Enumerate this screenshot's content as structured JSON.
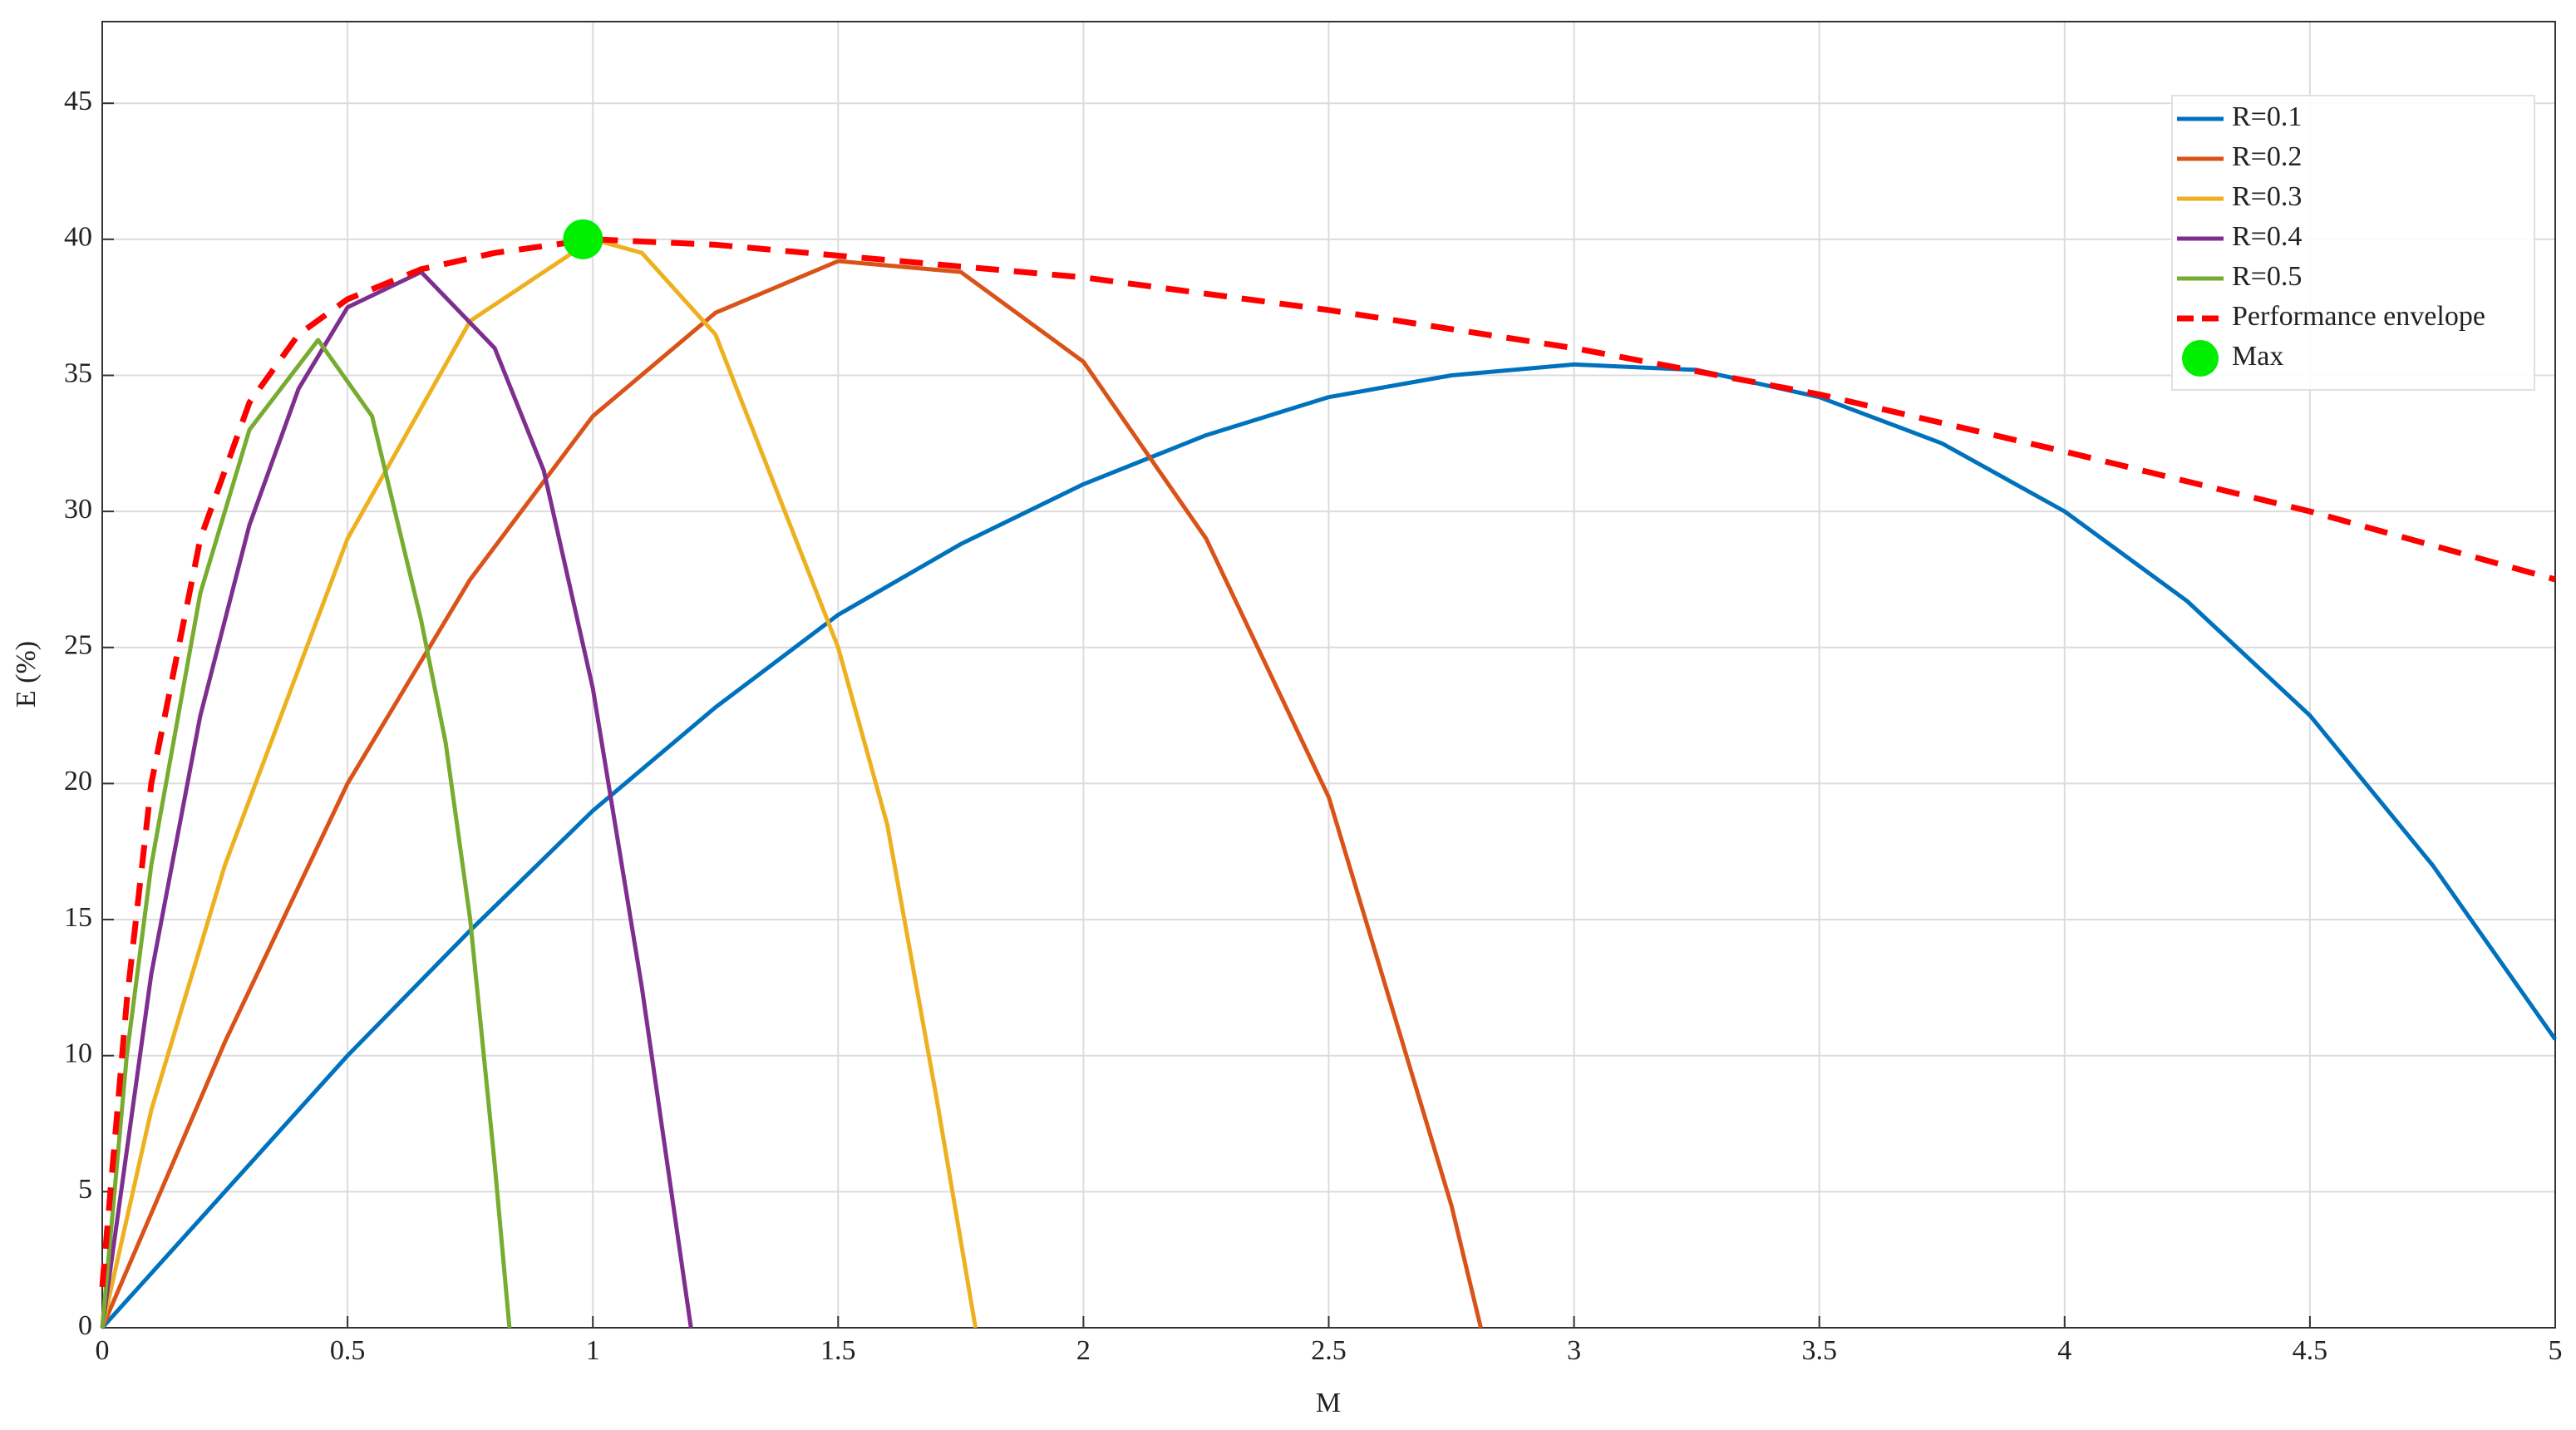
{
  "chart_data": {
    "type": "line",
    "x_label": "M",
    "y_label": "E (%)",
    "xlim": [
      0,
      5
    ],
    "ylim": [
      0,
      48
    ],
    "xticks": [
      0,
      0.5,
      1,
      1.5,
      2,
      2.5,
      3,
      3.5,
      4,
      4.5,
      5
    ],
    "yticks": [
      0,
      5,
      10,
      15,
      20,
      25,
      30,
      35,
      40,
      45
    ],
    "grid": true,
    "legend": "upper right",
    "series": [
      {
        "name": "R=0.1",
        "color": "#0072bd",
        "style": "solid",
        "x": [
          0,
          0.25,
          0.5,
          0.75,
          1,
          1.25,
          1.5,
          1.75,
          2,
          2.25,
          2.5,
          2.75,
          3,
          3.25,
          3.5,
          3.75,
          4,
          4.25,
          4.5,
          4.75,
          5
        ],
        "values": [
          0,
          5,
          10,
          14.6,
          19,
          22.8,
          26.2,
          28.8,
          31,
          32.8,
          34.2,
          35,
          35.4,
          35.2,
          34.2,
          32.5,
          30,
          26.7,
          22.5,
          17,
          10.6
        ]
      },
      {
        "name": "R=0.2",
        "color": "#d95319",
        "style": "solid",
        "x": [
          0,
          0.25,
          0.5,
          0.75,
          1,
          1.25,
          1.5,
          1.75,
          2,
          2.25,
          2.5,
          2.75,
          2.81
        ],
        "values": [
          0,
          10.5,
          20,
          27.5,
          33.5,
          37.3,
          39.2,
          38.8,
          35.5,
          29,
          19.5,
          4.5,
          0
        ]
      },
      {
        "name": "R=0.3",
        "color": "#edb120",
        "style": "solid",
        "x": [
          0,
          0.1,
          0.25,
          0.5,
          0.75,
          1,
          1.1,
          1.25,
          1.5,
          1.6,
          1.7,
          1.78
        ],
        "values": [
          0,
          8,
          17,
          29,
          37,
          40,
          39.5,
          36.5,
          25,
          18.5,
          8.5,
          0
        ]
      },
      {
        "name": "R=0.4",
        "color": "#7e2f8e",
        "style": "solid",
        "x": [
          0,
          0.1,
          0.2,
          0.3,
          0.4,
          0.5,
          0.65,
          0.8,
          0.9,
          1,
          1.1,
          1.2
        ],
        "values": [
          0,
          13,
          22.5,
          29.5,
          34.5,
          37.5,
          38.8,
          36,
          31.5,
          23.5,
          12.5,
          0
        ]
      },
      {
        "name": "R=0.5",
        "color": "#77ac30",
        "style": "solid",
        "x": [
          0,
          0.05,
          0.1,
          0.2,
          0.3,
          0.44,
          0.55,
          0.65,
          0.7,
          0.75,
          0.8,
          0.83
        ],
        "values": [
          0,
          10,
          17,
          27,
          33,
          36.3,
          33.5,
          26,
          21.5,
          15,
          6,
          0
        ]
      },
      {
        "name": "Performance envelope",
        "color": "#ff0000",
        "style": "dashed",
        "x": [
          0,
          0.05,
          0.1,
          0.2,
          0.3,
          0.4,
          0.5,
          0.65,
          0.8,
          1,
          1.25,
          1.5,
          2,
          2.5,
          3,
          3.5,
          4,
          4.5,
          5
        ],
        "values": [
          1.5,
          12,
          20,
          29,
          34,
          36.5,
          37.8,
          38.9,
          39.5,
          40,
          39.8,
          39.4,
          38.6,
          37.4,
          36,
          34.3,
          32.2,
          30,
          27.5
        ]
      },
      {
        "name": "Max",
        "color": "#00ee00",
        "style": "marker",
        "x": [
          0.98
        ],
        "values": [
          40
        ]
      }
    ]
  }
}
